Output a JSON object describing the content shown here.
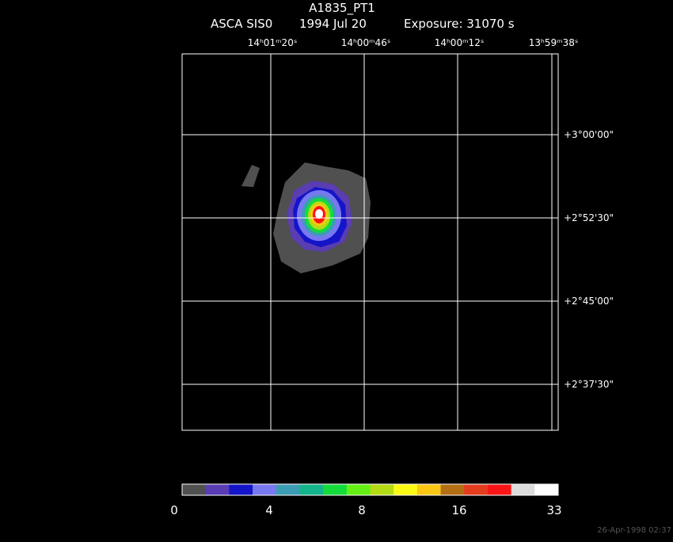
{
  "header": {
    "title": "A1835_PT1",
    "instrument": "ASCA SIS0",
    "date": "1994 Jul 20",
    "exposure": "Exposure: 31070 s"
  },
  "ra_labels": [
    "14ʰ01ᵐ20ˢ",
    "14ʰ00ᵐ46ˢ",
    "14ʰ00ᵐ12ˢ",
    "13ʰ59ᵐ38ˢ"
  ],
  "dec_labels": [
    "+3°00'00\"",
    "+2°52'30\"",
    "+2°45'00\"",
    "+2°37'30\""
  ],
  "colorbar": {
    "colors": [
      "#505050",
      "#5a3cb4",
      "#1414c8",
      "#7878f0",
      "#3c9cb4",
      "#14b48c",
      "#14dc3c",
      "#64f014",
      "#b4dc14",
      "#fafa14",
      "#fac814",
      "#b46e14",
      "#e63c1e",
      "#fa1414",
      "#dcdcdc",
      "#ffffff"
    ],
    "labels": [
      "0",
      "4",
      "8",
      "16",
      "33"
    ]
  },
  "footer": "26-Apr-1998 02:37"
}
